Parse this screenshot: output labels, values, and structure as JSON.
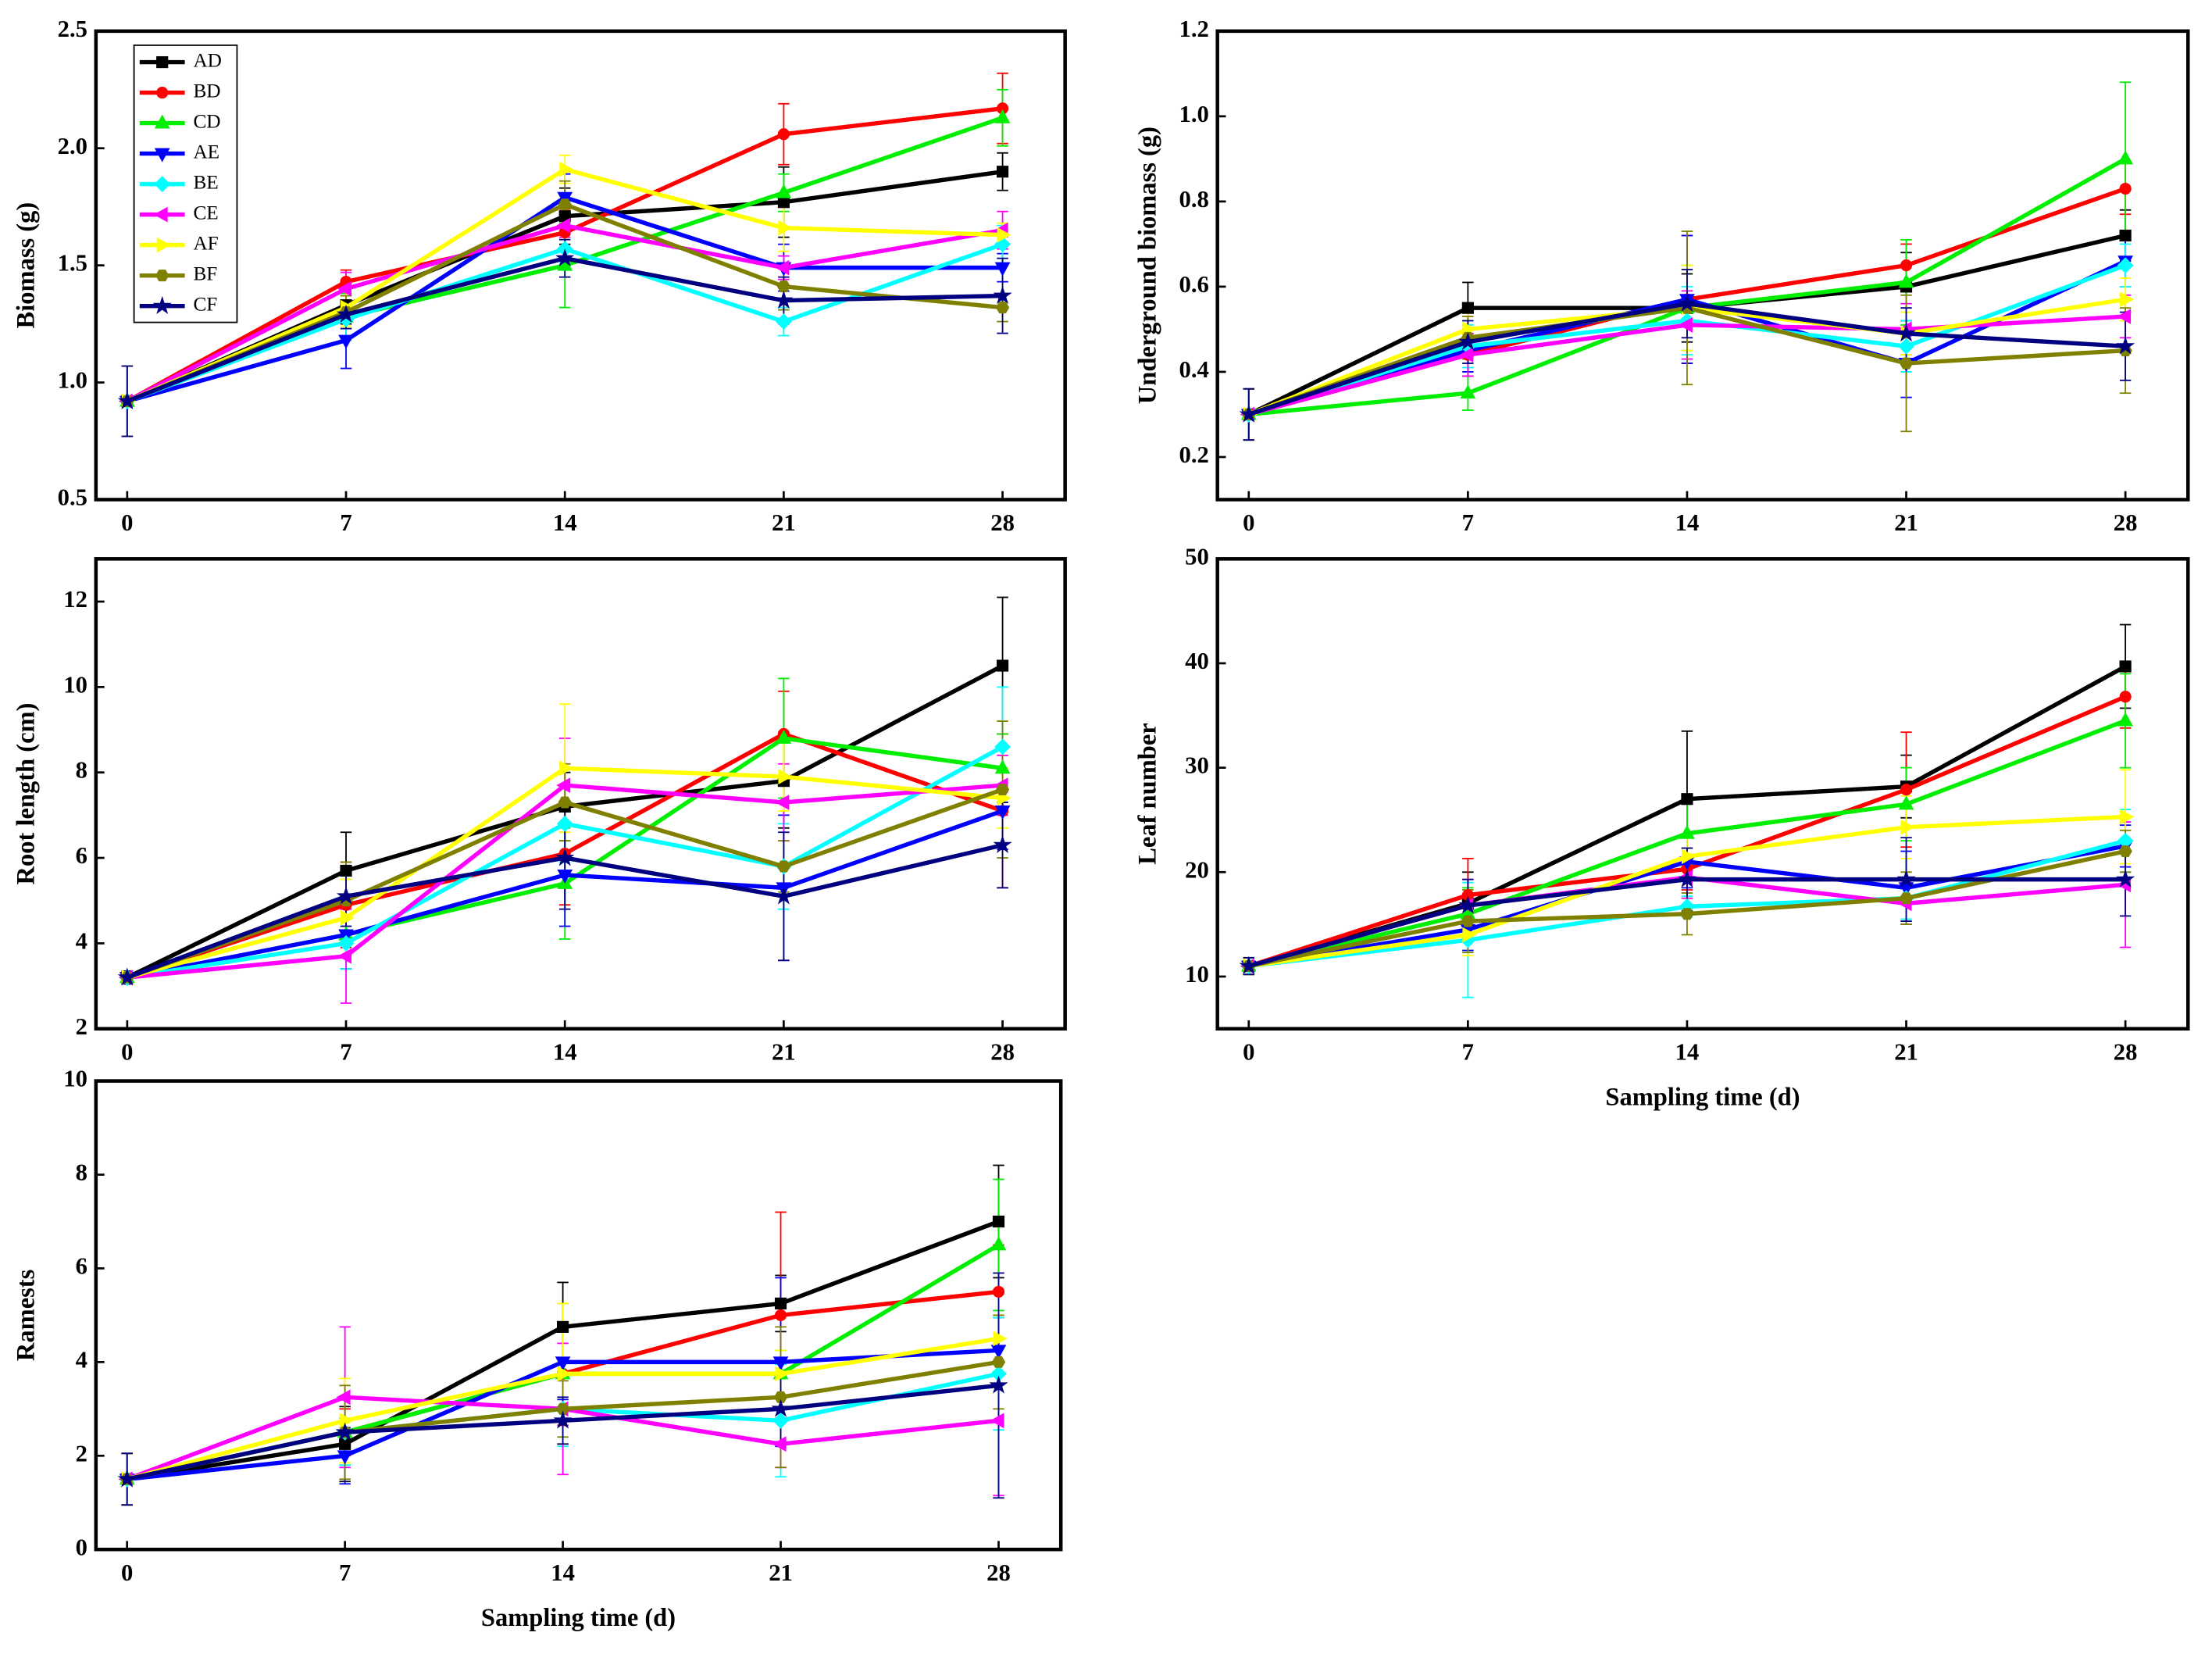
{
  "chart_data": [
    {
      "type": "line",
      "ylabel": "Biomass (g)",
      "x": [
        0,
        7,
        14,
        21,
        28
      ],
      "xlim": [
        -1,
        30
      ],
      "xticks": [
        0,
        7,
        14,
        21,
        28
      ],
      "ylim": [
        0.5,
        2.5
      ],
      "yticks": [
        0.5,
        {
          "value": 1,
          "label": "1.0"
        },
        1.5,
        {
          "value": 2,
          "label": "2.0"
        },
        2.5
      ],
      "legend": "upper left",
      "series": [
        {
          "name": "AD",
          "color": "#000000",
          "marker": "square",
          "values": [
            0.92,
            1.33,
            1.71,
            1.77,
            1.9
          ],
          "errors": [
            0.15,
            0.08,
            0.12,
            0.15,
            0.08
          ]
        },
        {
          "name": "BD",
          "color": "#ff0000",
          "marker": "circle",
          "values": [
            0.92,
            1.43,
            1.64,
            2.06,
            2.17
          ],
          "errors": [
            0.15,
            0.05,
            0.1,
            0.13,
            0.15
          ]
        },
        {
          "name": "CD",
          "color": "#00ee00",
          "marker": "triangle-up",
          "values": [
            0.92,
            1.28,
            1.5,
            1.81,
            2.13
          ],
          "errors": [
            0.15,
            0.1,
            0.18,
            0.08,
            0.12
          ]
        },
        {
          "name": "AE",
          "color": "#0000ff",
          "marker": "triangle-down",
          "values": [
            0.92,
            1.18,
            1.79,
            1.49,
            1.49
          ],
          "errors": [
            0.15,
            0.12,
            0.1,
            0.1,
            0.06
          ]
        },
        {
          "name": "BE",
          "color": "#00ffff",
          "marker": "diamond",
          "values": [
            0.92,
            1.27,
            1.57,
            1.26,
            1.59
          ],
          "errors": [
            0.15,
            0.08,
            0.06,
            0.06,
            0.08
          ]
        },
        {
          "name": "CE",
          "color": "#ff00ff",
          "marker": "triangle-left",
          "values": [
            0.92,
            1.4,
            1.67,
            1.49,
            1.65
          ],
          "errors": [
            0.15,
            0.07,
            0.05,
            0.05,
            0.08
          ]
        },
        {
          "name": "AF",
          "color": "#ffff00",
          "marker": "triangle-right",
          "values": [
            0.92,
            1.32,
            1.91,
            1.66,
            1.63
          ],
          "errors": [
            0.15,
            0.08,
            0.06,
            0.1,
            0.05
          ]
        },
        {
          "name": "BF",
          "color": "#808000",
          "marker": "hexagon",
          "values": [
            0.92,
            1.3,
            1.76,
            1.41,
            1.32
          ],
          "errors": [
            0.15,
            0.07,
            0.1,
            0.1,
            0.06
          ]
        },
        {
          "name": "CF",
          "color": "#000080",
          "marker": "star",
          "values": [
            0.92,
            1.29,
            1.53,
            1.35,
            1.37
          ],
          "errors": [
            0.15,
            0.06,
            0.08,
            0.1,
            0.16
          ]
        }
      ]
    },
    {
      "type": "line",
      "ylabel": "Underground biomass (g)",
      "x": [
        0,
        7,
        14,
        21,
        28
      ],
      "xlim": [
        -1,
        30
      ],
      "xticks": [
        0,
        7,
        14,
        21,
        28
      ],
      "ylim": [
        0.1,
        1.2
      ],
      "yticks": [
        0.2,
        0.4,
        0.6,
        0.8,
        {
          "value": 1,
          "label": "1.0"
        },
        1.2
      ],
      "series": [
        {
          "color": "#000000",
          "marker": "square",
          "values": [
            0.3,
            0.55,
            0.55,
            0.6,
            0.72
          ],
          "errors": [
            0.06,
            0.06,
            0.08,
            0.08,
            0.06
          ]
        },
        {
          "color": "#ff0000",
          "marker": "circle",
          "values": [
            0.3,
            0.44,
            0.57,
            0.65,
            0.83
          ],
          "errors": [
            0.06,
            0.05,
            0.15,
            0.05,
            0.06
          ]
        },
        {
          "color": "#00ee00",
          "marker": "triangle-up",
          "values": [
            0.3,
            0.35,
            0.55,
            0.61,
            0.9
          ],
          "errors": [
            0.06,
            0.04,
            0.1,
            0.1,
            0.18
          ]
        },
        {
          "color": "#0000ff",
          "marker": "triangle-down",
          "values": [
            0.3,
            0.45,
            0.57,
            0.42,
            0.66
          ],
          "errors": [
            0.06,
            0.05,
            0.15,
            0.08,
            0.06
          ]
        },
        {
          "color": "#00ffff",
          "marker": "diamond",
          "values": [
            0.3,
            0.46,
            0.52,
            0.46,
            0.65
          ],
          "errors": [
            0.06,
            0.05,
            0.08,
            0.06,
            0.05
          ]
        },
        {
          "color": "#ff00ff",
          "marker": "triangle-left",
          "values": [
            0.3,
            0.44,
            0.51,
            0.5,
            0.53
          ],
          "errors": [
            0.06,
            0.05,
            0.08,
            0.06,
            0.05
          ]
        },
        {
          "color": "#ffff00",
          "marker": "triangle-right",
          "values": [
            0.3,
            0.5,
            0.55,
            0.49,
            0.57
          ],
          "errors": [
            0.06,
            0.05,
            0.1,
            0.05,
            0.05
          ]
        },
        {
          "color": "#808000",
          "marker": "hexagon",
          "values": [
            0.3,
            0.48,
            0.55,
            0.42,
            0.45
          ],
          "errors": [
            0.06,
            0.05,
            0.18,
            0.16,
            0.1
          ]
        },
        {
          "color": "#000080",
          "marker": "star",
          "values": [
            0.3,
            0.47,
            0.56,
            0.49,
            0.46
          ],
          "errors": [
            0.06,
            0.05,
            0.08,
            0.06,
            0.08
          ]
        }
      ]
    },
    {
      "type": "line",
      "ylabel": "Root length (cm)",
      "x": [
        0,
        7,
        14,
        21,
        28
      ],
      "xlim": [
        -1,
        30
      ],
      "xticks": [
        0,
        7,
        14,
        21,
        28
      ],
      "ylim": [
        2,
        13
      ],
      "yticks": [
        2,
        4,
        6,
        8,
        10,
        12
      ],
      "series": [
        {
          "color": "#000000",
          "marker": "square",
          "values": [
            3.2,
            5.7,
            7.2,
            7.8,
            10.5
          ],
          "errors": [
            0.15,
            0.9,
            0.8,
            1.1,
            1.6
          ]
        },
        {
          "color": "#ff0000",
          "marker": "circle",
          "values": [
            3.2,
            4.9,
            6.1,
            8.9,
            7.1
          ],
          "errors": [
            0.15,
            1.0,
            1.2,
            1.0,
            1.8
          ]
        },
        {
          "color": "#00ee00",
          "marker": "triangle-up",
          "values": [
            3.2,
            4.2,
            5.4,
            8.8,
            8.1
          ],
          "errors": [
            0.15,
            0.8,
            1.3,
            1.4,
            0.8
          ]
        },
        {
          "color": "#0000ff",
          "marker": "triangle-down",
          "values": [
            3.2,
            4.2,
            5.6,
            5.3,
            7.1
          ],
          "errors": [
            0.15,
            0.8,
            1.2,
            1.7,
            0.9
          ]
        },
        {
          "color": "#00ffff",
          "marker": "diamond",
          "values": [
            3.2,
            4.0,
            6.8,
            5.8,
            8.6
          ],
          "errors": [
            0.15,
            0.6,
            0.9,
            1.0,
            1.4
          ]
        },
        {
          "color": "#ff00ff",
          "marker": "triangle-left",
          "values": [
            3.2,
            3.7,
            7.7,
            7.3,
            7.7
          ],
          "errors": [
            0.15,
            1.1,
            1.1,
            0.9,
            0.7
          ]
        },
        {
          "color": "#ffff00",
          "marker": "triangle-right",
          "values": [
            3.2,
            4.6,
            8.1,
            7.9,
            7.4
          ],
          "errors": [
            0.15,
            0.9,
            1.5,
            0.8,
            0.7
          ]
        },
        {
          "color": "#808000",
          "marker": "hexagon",
          "values": [
            3.2,
            5.0,
            7.3,
            5.8,
            7.6
          ],
          "errors": [
            0.15,
            0.9,
            0.9,
            0.6,
            1.6
          ]
        },
        {
          "color": "#000080",
          "marker": "star",
          "values": [
            3.2,
            5.1,
            6.0,
            5.1,
            6.3
          ],
          "errors": [
            0.15,
            0.7,
            1.2,
            1.5,
            1.0
          ]
        }
      ]
    },
    {
      "type": "line",
      "ylabel": "Leaf number",
      "xlabel": "Sampling time (d)",
      "x": [
        0,
        7,
        14,
        21,
        28
      ],
      "xlim": [
        -1,
        30
      ],
      "xticks": [
        0,
        7,
        14,
        21,
        28
      ],
      "ylim": [
        5,
        50
      ],
      "yticks": [
        10,
        20,
        30,
        40,
        50
      ],
      "series": [
        {
          "color": "#000000",
          "marker": "square",
          "values": [
            11,
            17,
            27,
            28.2,
            39.7
          ],
          "errors": [
            0.8,
            3,
            6.5,
            3,
            4
          ]
        },
        {
          "color": "#ff0000",
          "marker": "circle",
          "values": [
            11,
            17.8,
            20.3,
            27.9,
            36.8
          ],
          "errors": [
            0.8,
            3.5,
            2,
            5.5,
            3
          ]
        },
        {
          "color": "#00ee00",
          "marker": "triangle-up",
          "values": [
            11,
            16,
            23.7,
            26.5,
            34.5
          ],
          "errors": [
            0.8,
            2.5,
            3,
            3.5,
            4.5
          ]
        },
        {
          "color": "#0000ff",
          "marker": "triangle-down",
          "values": [
            11,
            14.5,
            21,
            18.5,
            22.5
          ],
          "errors": [
            0.8,
            2,
            2.5,
            3.5,
            2
          ]
        },
        {
          "color": "#00ffff",
          "marker": "diamond",
          "values": [
            11,
            13.5,
            16.7,
            17.5,
            23
          ],
          "errors": [
            0.8,
            5.5,
            1,
            2,
            3
          ]
        },
        {
          "color": "#ff00ff",
          "marker": "triangle-left",
          "values": [
            11,
            16.8,
            19.5,
            17,
            18.8
          ],
          "errors": [
            0.8,
            2.5,
            2,
            2,
            6
          ]
        },
        {
          "color": "#ffff00",
          "marker": "triangle-right",
          "values": [
            11,
            14,
            21.5,
            24.3,
            25.3
          ],
          "errors": [
            0.8,
            2,
            2,
            3,
            4.5
          ]
        },
        {
          "color": "#808000",
          "marker": "hexagon",
          "values": [
            11,
            15.3,
            16,
            17.5,
            22
          ],
          "errors": [
            0.8,
            3,
            2,
            2.5,
            2
          ]
        },
        {
          "color": "#000080",
          "marker": "star",
          "values": [
            11,
            16.8,
            19.3,
            19.3,
            19.3
          ],
          "errors": [
            0.8,
            2.5,
            3,
            4,
            3.5
          ]
        }
      ]
    },
    {
      "type": "line",
      "ylabel": "Ramests",
      "xlabel": "Sampling time (d)",
      "x": [
        0,
        7,
        14,
        21,
        28
      ],
      "xlim": [
        -1,
        30
      ],
      "xticks": [
        0,
        7,
        14,
        21,
        28
      ],
      "ylim": [
        0,
        10
      ],
      "yticks": [
        0,
        2,
        4,
        6,
        8,
        10
      ],
      "series": [
        {
          "color": "#000000",
          "marker": "square",
          "values": [
            1.5,
            2.25,
            4.75,
            5.25,
            7.0
          ],
          "errors": [
            0.55,
            0.8,
            0.95,
            0.6,
            1.2
          ]
        },
        {
          "color": "#ff0000",
          "marker": "circle",
          "values": [
            1.5,
            2.5,
            3.75,
            5.0,
            5.5
          ],
          "errors": [
            0.55,
            0.5,
            1.1,
            2.2,
            1.0
          ]
        },
        {
          "color": "#00ee00",
          "marker": "triangle-up",
          "values": [
            1.5,
            2.5,
            3.75,
            3.75,
            6.5
          ],
          "errors": [
            0.55,
            0.7,
            1.5,
            0.5,
            1.4
          ]
        },
        {
          "color": "#0000ff",
          "marker": "triangle-down",
          "values": [
            1.5,
            2.0,
            4.0,
            4.0,
            4.25
          ],
          "errors": [
            0.55,
            0.6,
            0.8,
            1.8,
            0.7
          ]
        },
        {
          "color": "#00ffff",
          "marker": "diamond",
          "values": [
            1.5,
            2.5,
            3.0,
            2.75,
            3.75
          ],
          "errors": [
            0.55,
            0.7,
            0.8,
            1.2,
            1.2
          ]
        },
        {
          "color": "#ff00ff",
          "marker": "triangle-left",
          "values": [
            1.5,
            3.25,
            3.0,
            2.25,
            2.75
          ],
          "errors": [
            0.55,
            1.5,
            1.4,
            0.5,
            1.6
          ]
        },
        {
          "color": "#ffff00",
          "marker": "triangle-right",
          "values": [
            1.5,
            2.75,
            3.75,
            3.75,
            4.5
          ],
          "errors": [
            0.55,
            0.9,
            1.5,
            0.5,
            1.0
          ]
        },
        {
          "color": "#808000",
          "marker": "hexagon",
          "values": [
            1.5,
            2.5,
            3.0,
            3.25,
            4.0
          ],
          "errors": [
            0.55,
            1.0,
            0.6,
            1.5,
            1.0
          ]
        },
        {
          "color": "#000080",
          "marker": "star",
          "values": [
            1.5,
            2.5,
            2.75,
            3.0,
            3.5
          ],
          "errors": [
            0.55,
            0.3,
            0.5,
            0.7,
            2.4
          ]
        }
      ]
    }
  ]
}
